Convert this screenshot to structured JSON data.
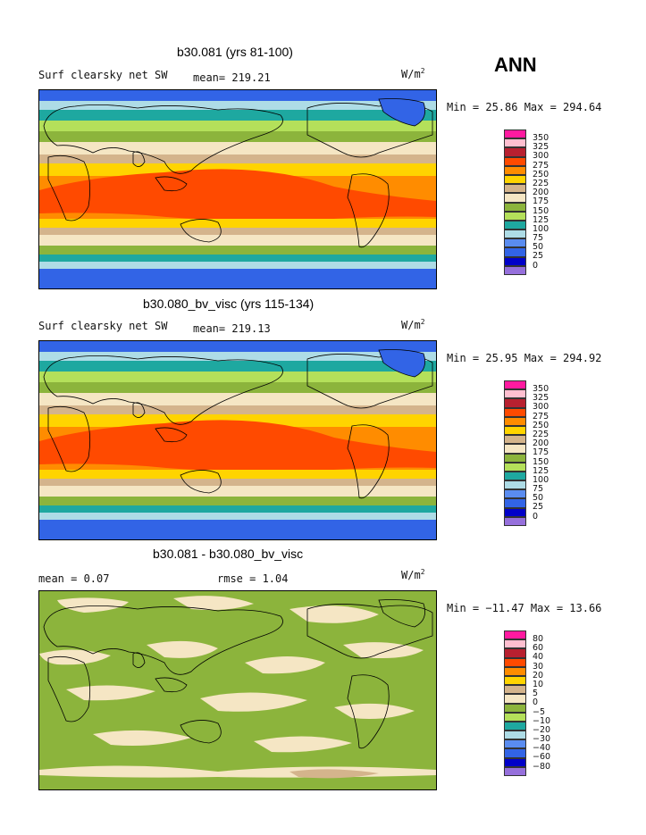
{
  "season": "ANN",
  "panels": [
    {
      "title": "b30.081 (yrs 81-100)",
      "variable": "Surf clearsky net SW",
      "mean": "mean= 219.21",
      "units_base": "W/m",
      "units_exp": "2",
      "minmax": "Min =   25.86 Max = 294.64",
      "legend": {
        "labels": [
          "350",
          "325",
          "300",
          "275",
          "250",
          "225",
          "200",
          "175",
          "150",
          "125",
          "100",
          "75",
          "50",
          "25",
          "0"
        ],
        "colors": [
          "#ff1aa0",
          "#ffbfd0",
          "#b82030",
          "#ff4a00",
          "#ff8c00",
          "#ffd400",
          "#d4b48c",
          "#f5e6c4",
          "#8cb43c",
          "#b4e05a",
          "#1ea8a0",
          "#aedce6",
          "#5a8cf0",
          "#3264e6",
          "#0000c8",
          "#9670dc"
        ]
      }
    },
    {
      "title": "b30.080_bv_visc (yrs 115-134)",
      "variable": "Surf clearsky net SW",
      "mean": "mean= 219.13",
      "units_base": "W/m",
      "units_exp": "2",
      "minmax": "Min =   25.95 Max = 294.92",
      "legend": {
        "labels": [
          "350",
          "325",
          "300",
          "275",
          "250",
          "225",
          "200",
          "175",
          "150",
          "125",
          "100",
          "75",
          "50",
          "25",
          "0"
        ],
        "colors": [
          "#ff1aa0",
          "#ffbfd0",
          "#b82030",
          "#ff4a00",
          "#ff8c00",
          "#ffd400",
          "#d4b48c",
          "#f5e6c4",
          "#8cb43c",
          "#b4e05a",
          "#1ea8a0",
          "#aedce6",
          "#5a8cf0",
          "#3264e6",
          "#0000c8",
          "#9670dc"
        ]
      }
    },
    {
      "title": "b30.081 - b30.080_bv_visc",
      "mean_label": "mean =    0.07",
      "rmse_label": "rmse =    1.04",
      "units_base": "W/m",
      "units_exp": "2",
      "minmax": "Min = −11.47 Max =   13.66",
      "legend": {
        "labels": [
          "80",
          "60",
          "40",
          "30",
          "20",
          "10",
          "5",
          "0",
          "−5",
          "−10",
          "−20",
          "−30",
          "−40",
          "−60",
          "−80"
        ],
        "colors": [
          "#ff1aa0",
          "#ffbfd0",
          "#b82030",
          "#ff4a00",
          "#ff8c00",
          "#ffd400",
          "#d4b48c",
          "#f5e6c4",
          "#8cb43c",
          "#b4e05a",
          "#1ea8a0",
          "#aedce6",
          "#5a8cf0",
          "#3264e6",
          "#0000c8",
          "#9670dc"
        ]
      }
    }
  ]
}
